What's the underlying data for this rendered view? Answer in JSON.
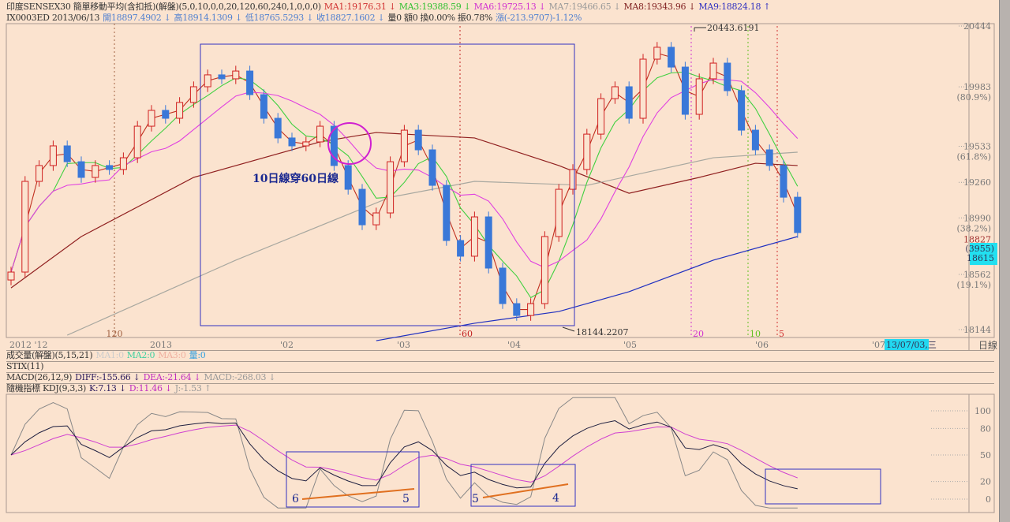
{
  "header": {
    "line1": [
      {
        "text": "印度SENSEX30 簡單移動平均(含扣抵)(解盤)(5,0,10,0,0,20,120,60,240,1,0,0,0)",
        "color": "#333333"
      },
      {
        "text": "MA1:19176.31 ↓",
        "color": "#d03030"
      },
      {
        "text": "MA3:19388.59 ↓",
        "color": "#30c030"
      },
      {
        "text": "MA6:19725.13 ↓",
        "color": "#d030d0"
      },
      {
        "text": "MA7:19466.65 ↓",
        "color": "#999999"
      },
      {
        "text": "MA8:19343.96 ↓",
        "color": "#802020"
      },
      {
        "text": "MA9:18824.18 ↑",
        "color": "#3030c0"
      }
    ],
    "line2": [
      {
        "text": "IX0003ED 2013/06/13",
        "color": "#333333"
      },
      {
        "text": "開18897.4902 ↓",
        "color": "#5080d0"
      },
      {
        "text": "高18914.1309 ↓",
        "color": "#5080d0"
      },
      {
        "text": "低18765.5293 ↓",
        "color": "#5080d0"
      },
      {
        "text": "收18827.1602 ↓",
        "color": "#5080d0"
      },
      {
        "text": "量0 額0 換0.00% 振0.78%",
        "color": "#333333"
      },
      {
        "text": "漲(-213.9707)-1.12%",
        "color": "#5080d0"
      }
    ]
  },
  "price_axis": {
    "ticks": [
      {
        "v": 20444,
        "label": "20444"
      },
      {
        "v": 19983,
        "label": "19983",
        "sub": "(80.9%)"
      },
      {
        "v": 19533,
        "label": "19533",
        "sub": "(61.8%)"
      },
      {
        "v": 19260,
        "label": "19260"
      },
      {
        "v": 18990,
        "label": "18990",
        "sub": "(38.2%)"
      },
      {
        "v": 18562,
        "label": "18562",
        "sub": "(19.1%)"
      },
      {
        "v": 18144,
        "label": "18144"
      }
    ],
    "last": "18827",
    "cursor_box": [
      "(3955)",
      "18615"
    ],
    "cursor_color": "#22e0f0"
  },
  "time_axis": {
    "labels": [
      "2012 '12",
      "2013",
      "'02",
      "'03",
      "'04",
      "'05",
      "'06",
      "'07"
    ],
    "date_box": "13/07/03,三",
    "period": "日線"
  },
  "markers": [
    {
      "label": "120",
      "color": "#a06040"
    },
    {
      "label": "60",
      "color": "#c02020"
    },
    {
      "label": "20",
      "color": "#d030d0"
    },
    {
      "label": "10",
      "color": "#60c020"
    },
    {
      "label": "5",
      "color": "#d03030"
    }
  ],
  "annotations": {
    "high": "20443.6191",
    "low": "18144.2207",
    "cross_text": "10日線穿60日線",
    "kdj_labels": [
      "6",
      "5",
      "5",
      "4"
    ]
  },
  "panels": {
    "volume": [
      {
        "text": "成交量(解盤)(5,15,21)",
        "color": "#333333"
      },
      {
        "text": "MA1:0",
        "color": "#cccccc"
      },
      {
        "text": "MA2:0",
        "color": "#40d0a0"
      },
      {
        "text": "MA3:0",
        "color": "#f0b0a0"
      },
      {
        "text": "量:0",
        "color": "#30a0e0"
      }
    ],
    "stix": "STIX(11)",
    "macd": [
      {
        "text": "MACD(26,12,9)",
        "color": "#333333"
      },
      {
        "text": "DIFF:-155.66 ↓",
        "color": "#302060"
      },
      {
        "text": "DEA:-21.64 ↓",
        "color": "#c030c0"
      },
      {
        "text": "MACD:-268.03 ↓",
        "color": "#999999"
      }
    ],
    "kdj": [
      {
        "text": "隨機指標  KDJ(9,3,3)",
        "color": "#333333"
      },
      {
        "text": "K:7.13 ↓",
        "color": "#302060"
      },
      {
        "text": "D:11.46 ↓",
        "color": "#c030c0"
      },
      {
        "text": "J:-1.53 ↑",
        "color": "#999999"
      }
    ],
    "kdj_ticks": [
      100,
      80,
      50,
      20,
      0
    ]
  },
  "chart_data": {
    "type": "candlestick",
    "ylim": [
      18144,
      20444
    ],
    "closes": [
      18580,
      19267,
      19387,
      19536,
      19416,
      19297,
      19387,
      19357,
      19446,
      19685,
      19805,
      19745,
      19865,
      19984,
      20074,
      20044,
      20103,
      19924,
      19745,
      19596,
      19536,
      19566,
      19685,
      19387,
      19207,
      18938,
      19028,
      19416,
      19655,
      19506,
      19237,
      18819,
      18700,
      18998,
      18610,
      18341,
      18251,
      18341,
      18849,
      19207,
      19357,
      19625,
      19894,
      19984,
      19745,
      20193,
      20283,
      20133,
      19775,
      20044,
      20163,
      19954,
      19655,
      19506,
      19387,
      19147,
      18879
    ],
    "ma_lines": [
      {
        "name": "MA8",
        "color": "#902020",
        "points": [
          [
            0,
            18460
          ],
          [
            5,
            18849
          ],
          [
            13,
            19297
          ],
          [
            22,
            19566
          ],
          [
            26,
            19637
          ],
          [
            33,
            19596
          ],
          [
            39,
            19387
          ],
          [
            44,
            19177
          ],
          [
            49,
            19297
          ],
          [
            53,
            19404
          ],
          [
            56,
            19387
          ]
        ]
      },
      {
        "name": "MA7",
        "color": "#a8a8a0",
        "points": [
          [
            4,
            18102
          ],
          [
            16,
            18670
          ],
          [
            27,
            19147
          ],
          [
            33,
            19267
          ],
          [
            41,
            19237
          ],
          [
            50,
            19446
          ],
          [
            56,
            19488
          ]
        ]
      },
      {
        "name": "MA9",
        "color": "#2030c0",
        "points": [
          [
            26,
            18060
          ],
          [
            33,
            18192
          ],
          [
            39,
            18281
          ],
          [
            44,
            18431
          ],
          [
            50,
            18670
          ],
          [
            56,
            18849
          ]
        ]
      }
    ],
    "short_ma_colors": [
      "#c03020",
      "#40d040",
      "#e040e0"
    ]
  }
}
